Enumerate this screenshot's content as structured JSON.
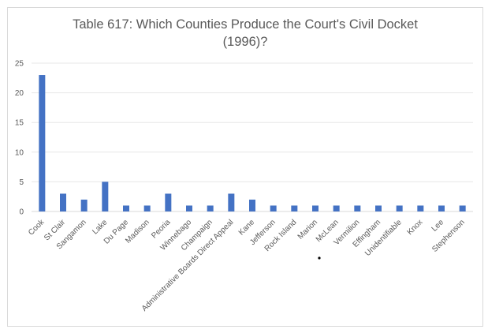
{
  "chart_data": {
    "type": "bar",
    "title_lines": [
      "Table 617: Which Counties Produce the Court's Civil Docket",
      "(1996)?"
    ],
    "categories": [
      "Cook",
      "St Clair",
      "Sangamon",
      "Lake",
      "Du Page",
      "Madison",
      "Peoria",
      "Winnebago",
      "Champaign",
      "Administrative Boards Direct Appeal",
      "Kane",
      "Jefferson",
      "Rock Island",
      "Marion",
      "McLean",
      "Vermilion",
      "Effingham",
      "Unidentifiable",
      "Knox",
      "Lee",
      "Stephenson"
    ],
    "values": [
      23,
      3,
      2,
      5,
      1,
      1,
      3,
      1,
      1,
      3,
      2,
      1,
      1,
      1,
      1,
      1,
      1,
      1,
      1,
      1,
      1
    ],
    "yticks": [
      "0",
      "5",
      "10",
      "15",
      "20",
      "25"
    ],
    "ylim": [
      0,
      25
    ],
    "grid": true,
    "legend": "none",
    "bar_color": "#4472c4"
  }
}
